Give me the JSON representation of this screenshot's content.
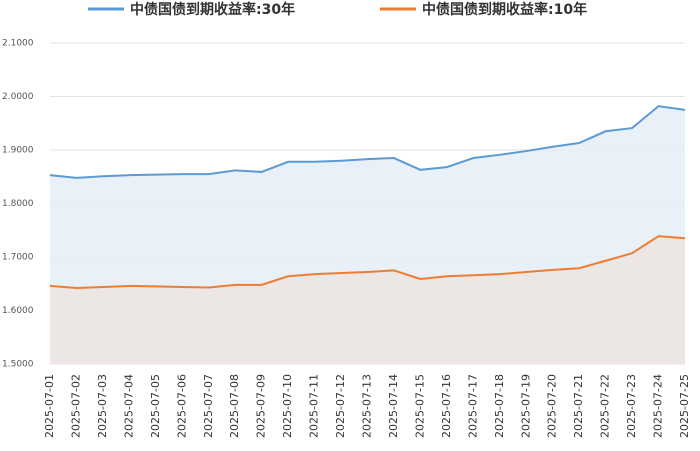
{
  "chart_data": {
    "type": "line",
    "categories": [
      "2025-07-01",
      "2025-07-02",
      "2025-07-03",
      "2025-07-04",
      "2025-07-05",
      "2025-07-06",
      "2025-07-07",
      "2025-07-08",
      "2025-07-09",
      "2025-07-10",
      "2025-07-11",
      "2025-07-12",
      "2025-07-13",
      "2025-07-14",
      "2025-07-15",
      "2025-07-16",
      "2025-07-17",
      "2025-07-18",
      "2025-07-19",
      "2025-07-20",
      "2025-07-21",
      "2025-07-22",
      "2025-07-23",
      "2025-07-24",
      "2025-07-25"
    ],
    "series": [
      {
        "name": "中债国债到期收益率:30年",
        "color": "#5b9bd5",
        "area_color": "#e6edf7",
        "values": [
          1.853,
          1.848,
          1.851,
          1.853,
          1.854,
          1.855,
          1.855,
          1.862,
          1.859,
          1.878,
          1.878,
          1.88,
          1.883,
          1.885,
          1.863,
          1.868,
          1.885,
          1.891,
          1.898,
          1.906,
          1.913,
          1.935,
          1.941,
          1.982,
          1.975
        ]
      },
      {
        "name": "中债国债到期收益率:10年",
        "color": "#ed7d31",
        "area_color": "#ece4e2",
        "values": [
          1.646,
          1.642,
          1.644,
          1.646,
          1.645,
          1.644,
          1.643,
          1.648,
          1.648,
          1.664,
          1.668,
          1.67,
          1.672,
          1.675,
          1.659,
          1.664,
          1.666,
          1.668,
          1.672,
          1.676,
          1.679,
          1.693,
          1.707,
          1.739,
          1.735
        ]
      }
    ],
    "ylim": [
      1.5,
      2.1
    ],
    "yticks": [
      {
        "value": 1.5,
        "label": "1.5000"
      },
      {
        "value": 1.6,
        "label": "1.6000"
      },
      {
        "value": 1.7,
        "label": "1.7000"
      },
      {
        "value": 1.8,
        "label": "1.8000"
      },
      {
        "value": 1.9,
        "label": "1.9000"
      },
      {
        "value": 2.0,
        "label": "2.0000"
      },
      {
        "value": 2.1,
        "label": "2.1000"
      }
    ],
    "grid": true
  }
}
